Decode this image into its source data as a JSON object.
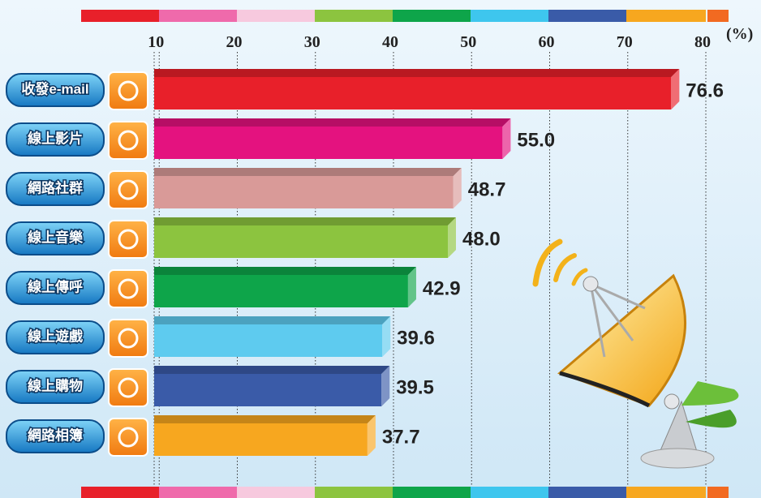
{
  "chart_data": {
    "type": "hbar",
    "x_unit": "(%)",
    "categories": [
      "收發e-mail",
      "線上影片",
      "網路社群",
      "線上音樂",
      "線上傳呼",
      "線上遊戲",
      "線上購物",
      "網路相簿"
    ],
    "values": [
      76.6,
      55.0,
      48.7,
      48.0,
      42.9,
      39.6,
      39.5,
      37.7
    ],
    "value_labels": [
      "76.6",
      "55.0",
      "48.7",
      "48.0",
      "42.9",
      "39.6",
      "39.5",
      "37.7"
    ],
    "colors": [
      "#e8202a",
      "#e4127f",
      "#d99a98",
      "#8cc43f",
      "#0ea54a",
      "#5ecbef",
      "#3a5ba8",
      "#f7a71f"
    ],
    "xlim": [
      0,
      80
    ],
    "xticks": [
      10,
      20,
      30,
      40,
      50,
      60,
      70,
      80
    ],
    "grid": true
  }
}
